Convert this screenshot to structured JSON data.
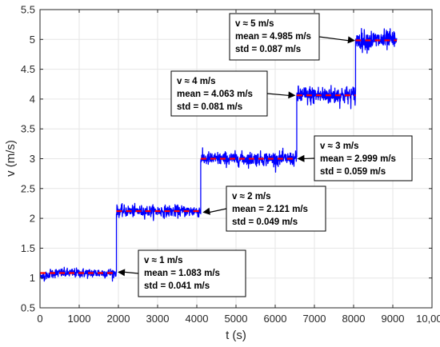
{
  "chart_data": {
    "type": "line",
    "xlabel": "t (s)",
    "ylabel": "v (m/s)",
    "xlim": [
      0,
      10000
    ],
    "ylim": [
      0.5,
      5.5
    ],
    "grid": true,
    "xticks": [
      0,
      1000,
      2000,
      3000,
      4000,
      5000,
      6000,
      7000,
      8000,
      9000,
      10000
    ],
    "xtick_labels": [
      "0",
      "1000",
      "2000",
      "3000",
      "4000",
      "5000",
      "6000",
      "7000",
      "8000",
      "9000",
      "10,000"
    ],
    "yticks": [
      0.5,
      1,
      1.5,
      2,
      2.5,
      3,
      3.5,
      4,
      4.5,
      5,
      5.5
    ],
    "ytick_labels": [
      "0.5",
      "1",
      "1.5",
      "2",
      "2.5",
      "3",
      "3.5",
      "4",
      "4.5",
      "5",
      "5.5"
    ],
    "series": [
      {
        "style": "measured",
        "color": "#0000ff",
        "segments": [
          {
            "x_start": 0,
            "x_end": 1950,
            "mean": 1.083,
            "std": 0.041
          },
          {
            "x_start": 1950,
            "x_end": 4100,
            "mean": 2.121,
            "std": 0.049
          },
          {
            "x_start": 4100,
            "x_end": 6550,
            "mean": 2.999,
            "std": 0.059
          },
          {
            "x_start": 6550,
            "x_end": 8050,
            "mean": 4.063,
            "std": 0.081
          },
          {
            "x_start": 8050,
            "x_end": 9100,
            "mean": 4.985,
            "std": 0.087
          }
        ]
      },
      {
        "style": "mean",
        "color": "#ff0000",
        "dash": true,
        "segments": [
          {
            "x_start": 0,
            "x_end": 1950,
            "value": 1.083
          },
          {
            "x_start": 1950,
            "x_end": 4100,
            "value": 2.121
          },
          {
            "x_start": 4100,
            "x_end": 6550,
            "value": 2.999
          },
          {
            "x_start": 6550,
            "x_end": 8050,
            "value": 4.063
          },
          {
            "x_start": 8050,
            "x_end": 9100,
            "value": 4.985
          }
        ]
      }
    ],
    "annotations": [
      {
        "lines": [
          "v ≈ 1 m/s",
          "mean = 1.083 m/s",
          "std = 0.041 m/s"
        ],
        "arrow_to": [
          1980,
          1.1
        ]
      },
      {
        "lines": [
          "v ≈ 2 m/s",
          "mean = 2.121 m/s",
          "std = 0.049 m/s"
        ],
        "arrow_to": [
          4150,
          2.1
        ]
      },
      {
        "lines": [
          "v ≈ 3 m/s",
          "mean = 2.999 m/s",
          "std = 0.059 m/s"
        ],
        "arrow_to": [
          6560,
          3.0
        ]
      },
      {
        "lines": [
          "v ≈ 4 m/s",
          "mean = 4.063 m/s",
          "std = 0.081 m/s"
        ],
        "arrow_to": [
          6520,
          4.06
        ]
      },
      {
        "lines": [
          "v ≈ 5 m/s",
          "mean = 4.985 m/s",
          "std = 0.087 m/s"
        ],
        "arrow_to": [
          8040,
          4.98
        ]
      }
    ]
  }
}
